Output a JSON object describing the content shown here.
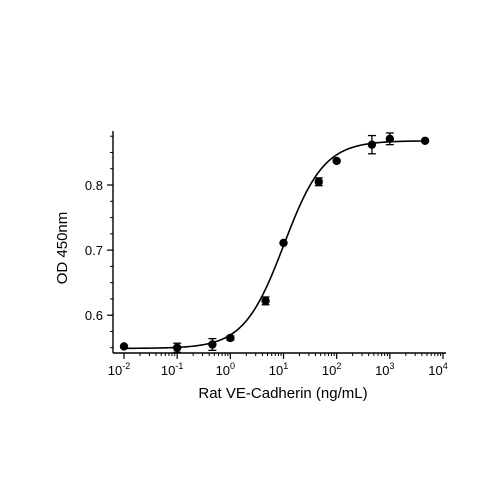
{
  "chart_data": {
    "type": "scatter",
    "xlabel": "Rat VE-Cadherin (ng/mL)",
    "ylabel": "OD 450nm",
    "x_scale": "log",
    "xlim": [
      0.01,
      10000
    ],
    "ylim": [
      0.545,
      0.883
    ],
    "x_ticks": [
      {
        "base": "10",
        "exp": "-2",
        "value": 0.01
      },
      {
        "base": "10",
        "exp": "-1",
        "value": 0.1
      },
      {
        "base": "10",
        "exp": "0",
        "value": 1
      },
      {
        "base": "10",
        "exp": "1",
        "value": 10
      },
      {
        "base": "10",
        "exp": "2",
        "value": 100
      },
      {
        "base": "10",
        "exp": "3",
        "value": 1000
      },
      {
        "base": "10",
        "exp": "4",
        "value": 10000
      }
    ],
    "y_ticks": [
      {
        "label": "0.6",
        "value": 0.6
      },
      {
        "label": "0.7",
        "value": 0.7
      },
      {
        "label": "0.8",
        "value": 0.8
      }
    ],
    "grid": false,
    "legend": "none",
    "series": [
      {
        "marker": "filled-circle",
        "color": "#000000",
        "points": [
          {
            "x": 0.01,
            "y": 0.552,
            "err": 0
          },
          {
            "x": 0.1,
            "y": 0.55,
            "err": 0.007
          },
          {
            "x": 0.46,
            "y": 0.555,
            "err": 0.009
          },
          {
            "x": 1,
            "y": 0.565,
            "err": 0.003
          },
          {
            "x": 4.6,
            "y": 0.622,
            "err": 0.006
          },
          {
            "x": 10,
            "y": 0.711,
            "err": 0
          },
          {
            "x": 46,
            "y": 0.805,
            "err": 0.006
          },
          {
            "x": 100,
            "y": 0.837,
            "err": 0
          },
          {
            "x": 460,
            "y": 0.862,
            "err": 0.014
          },
          {
            "x": 1000,
            "y": 0.871,
            "err": 0.009
          },
          {
            "x": 4600,
            "y": 0.868,
            "err": 0
          }
        ]
      }
    ],
    "fit_curve": {
      "model": "4PL",
      "bottom": 0.549,
      "top": 0.868,
      "ec50": 10.2,
      "hill": 1.15,
      "color": "#000000"
    }
  }
}
